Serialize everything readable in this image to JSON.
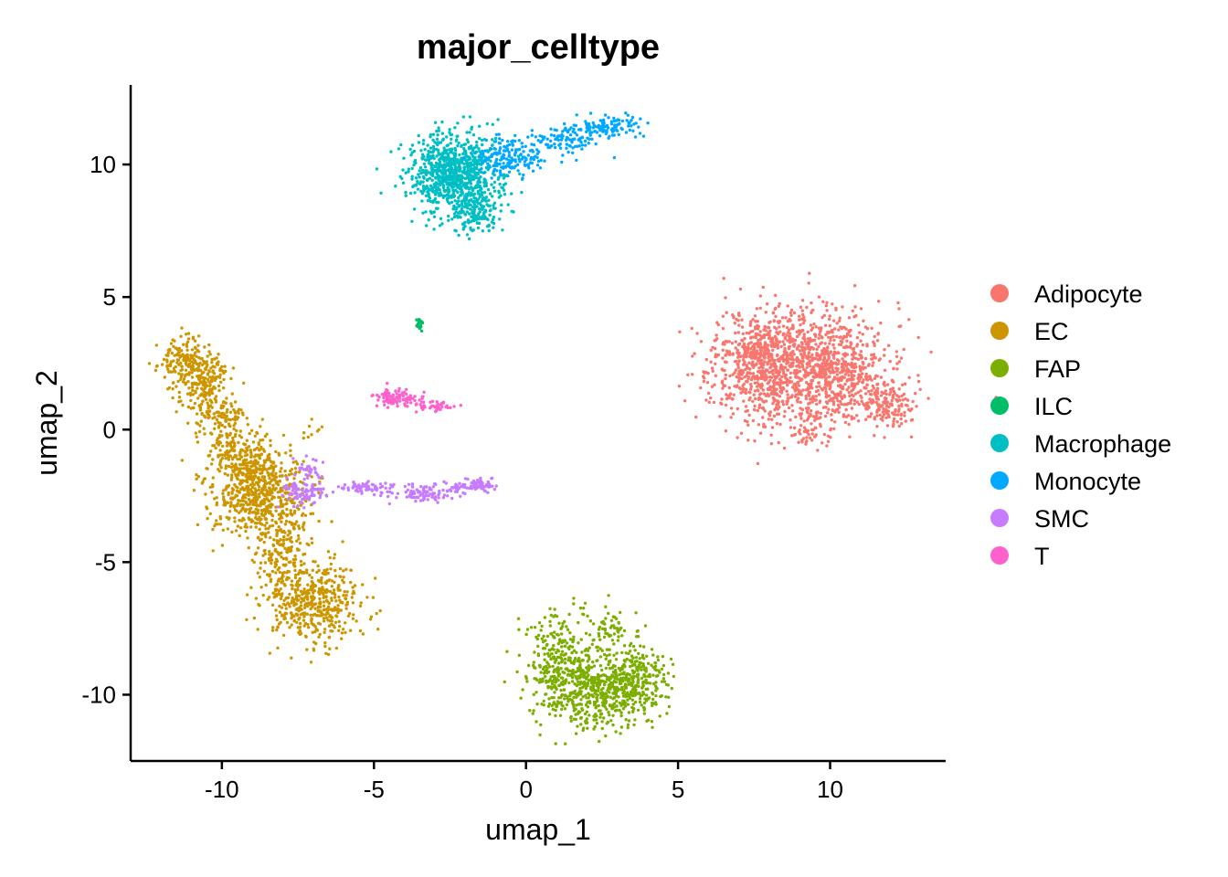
{
  "chart_data": {
    "type": "scatter",
    "title": "major_celltype",
    "xlabel": "umap_1",
    "ylabel": "umap_2",
    "xlim": [
      -13,
      13.8
    ],
    "ylim": [
      -12.5,
      13
    ],
    "xticks": [
      -10,
      -5,
      0,
      5,
      10
    ],
    "yticks": [
      -10,
      -5,
      0,
      5,
      10
    ],
    "xtick_labels": [
      "-10",
      "-5",
      "0",
      "5",
      "10"
    ],
    "ytick_labels": [
      "-10",
      "-5",
      "0",
      "5",
      "10"
    ],
    "grid": false,
    "legend_position": "right",
    "legend": [
      {
        "name": "Adipocyte",
        "color": "#F8766D"
      },
      {
        "name": "EC",
        "color": "#CD9600"
      },
      {
        "name": "FAP",
        "color": "#7CAE00"
      },
      {
        "name": "ILC",
        "color": "#00BE67"
      },
      {
        "name": "Macrophage",
        "color": "#00BFC4"
      },
      {
        "name": "Monocyte",
        "color": "#00A9FF"
      },
      {
        "name": "SMC",
        "color": "#C77CFF"
      },
      {
        "name": "T",
        "color": "#FF61CC"
      }
    ],
    "clusters": [
      {
        "name": "Adipocyte",
        "color": "#F8766D",
        "seed": 11,
        "blobs": [
          {
            "cx": 9.0,
            "cy": 2.8,
            "sx": 1.4,
            "sy": 1.0,
            "n": 900
          },
          {
            "cx": 8.0,
            "cy": 1.6,
            "sx": 0.9,
            "sy": 0.9,
            "n": 350
          },
          {
            "cx": 10.5,
            "cy": 1.7,
            "sx": 0.7,
            "sy": 0.9,
            "n": 250
          },
          {
            "cx": 11.9,
            "cy": 0.9,
            "sx": 0.4,
            "sy": 0.4,
            "n": 140
          },
          {
            "cx": 9.3,
            "cy": 0.0,
            "sx": 0.3,
            "sy": 0.4,
            "n": 50
          },
          {
            "cx": 7.6,
            "cy": 2.9,
            "sx": 0.5,
            "sy": 0.5,
            "n": 120
          }
        ]
      },
      {
        "name": "EC",
        "color": "#CD9600",
        "seed": 23,
        "blobs": [
          {
            "cx": -11.3,
            "cy": 2.6,
            "sx": 0.4,
            "sy": 0.4,
            "n": 150
          },
          {
            "cx": -10.6,
            "cy": 1.6,
            "sx": 0.4,
            "sy": 0.7,
            "n": 220
          },
          {
            "cx": -9.9,
            "cy": 0.1,
            "sx": 0.35,
            "sy": 0.7,
            "n": 110
          },
          {
            "cx": -9.2,
            "cy": -1.2,
            "sx": 0.5,
            "sy": 0.5,
            "n": 160
          },
          {
            "cx": -8.8,
            "cy": -2.4,
            "sx": 0.8,
            "sy": 0.8,
            "n": 550
          },
          {
            "cx": -8.0,
            "cy": -4.5,
            "sx": 0.5,
            "sy": 0.9,
            "n": 220
          },
          {
            "cx": -7.0,
            "cy": -6.5,
            "sx": 0.8,
            "sy": 0.7,
            "n": 450
          },
          {
            "cx": -7.0,
            "cy": 0.0,
            "sx": 0.15,
            "sy": 0.15,
            "n": 8
          }
        ]
      },
      {
        "name": "FAP",
        "color": "#7CAE00",
        "seed": 37,
        "blobs": [
          {
            "cx": 2.4,
            "cy": -9.8,
            "sx": 1.0,
            "sy": 0.7,
            "n": 600
          },
          {
            "cx": 1.0,
            "cy": -8.5,
            "sx": 0.5,
            "sy": 0.8,
            "n": 200
          },
          {
            "cx": 3.5,
            "cy": -9.2,
            "sx": 0.5,
            "sy": 0.6,
            "n": 150
          },
          {
            "cx": 2.6,
            "cy": -7.6,
            "sx": 0.4,
            "sy": 0.4,
            "n": 60
          }
        ]
      },
      {
        "name": "ILC",
        "color": "#00BE67",
        "seed": 41,
        "blobs": [
          {
            "cx": -3.5,
            "cy": 4.0,
            "sx": 0.06,
            "sy": 0.12,
            "n": 25
          }
        ]
      },
      {
        "name": "Macrophage",
        "color": "#00BFC4",
        "seed": 53,
        "blobs": [
          {
            "cx": -2.3,
            "cy": 9.6,
            "sx": 0.75,
            "sy": 0.8,
            "n": 900
          },
          {
            "cx": -1.7,
            "cy": 8.2,
            "sx": 0.4,
            "sy": 0.4,
            "n": 120
          }
        ]
      },
      {
        "name": "Monocyte",
        "color": "#00A9FF",
        "seed": 67,
        "blobs": [
          {
            "cx": -0.6,
            "cy": 10.2,
            "sx": 0.5,
            "sy": 0.35,
            "n": 160
          },
          {
            "cx": 1.2,
            "cy": 10.9,
            "sx": 0.5,
            "sy": 0.3,
            "n": 90
          },
          {
            "cx": 2.7,
            "cy": 11.4,
            "sx": 0.5,
            "sy": 0.2,
            "n": 110
          }
        ]
      },
      {
        "name": "SMC",
        "color": "#C77CFF",
        "seed": 71,
        "blobs": [
          {
            "cx": -7.3,
            "cy": -2.4,
            "sx": 0.4,
            "sy": 0.25,
            "n": 90
          },
          {
            "cx": -7.1,
            "cy": -1.5,
            "sx": 0.25,
            "sy": 0.25,
            "n": 30
          },
          {
            "cx": -5.2,
            "cy": -2.2,
            "sx": 0.6,
            "sy": 0.12,
            "n": 70
          },
          {
            "cx": -3.4,
            "cy": -2.4,
            "sx": 0.45,
            "sy": 0.18,
            "n": 80
          },
          {
            "cx": -2.2,
            "cy": -2.2,
            "sx": 0.4,
            "sy": 0.1,
            "n": 50
          },
          {
            "cx": -1.5,
            "cy": -2.1,
            "sx": 0.2,
            "sy": 0.12,
            "n": 50
          }
        ]
      },
      {
        "name": "T",
        "color": "#FF61CC",
        "seed": 89,
        "blobs": [
          {
            "cx": -4.2,
            "cy": 1.2,
            "sx": 0.4,
            "sy": 0.18,
            "n": 90
          },
          {
            "cx": -3.1,
            "cy": 0.9,
            "sx": 0.35,
            "sy": 0.12,
            "n": 50
          }
        ]
      }
    ]
  }
}
